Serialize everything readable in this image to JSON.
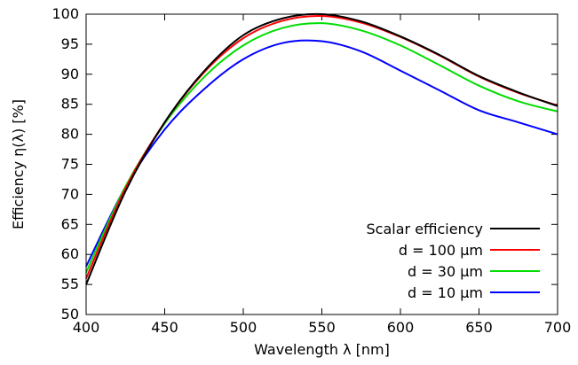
{
  "chart_data": {
    "type": "line",
    "xlabel": "Wavelength   λ [nm]",
    "ylabel": "Efficiency   η(λ) [%]",
    "xlim": [
      400,
      700
    ],
    "ylim": [
      50,
      100
    ],
    "xticks": [
      400,
      450,
      500,
      550,
      600,
      650,
      700
    ],
    "yticks": [
      50,
      55,
      60,
      65,
      70,
      75,
      80,
      85,
      90,
      95,
      100
    ],
    "grid": false,
    "legend": "bottom-right",
    "x": [
      400,
      425,
      450,
      475,
      500,
      525,
      550,
      575,
      600,
      625,
      650,
      675,
      700
    ],
    "series": [
      {
        "name": "Scalar  efficiency",
        "color": "#000000",
        "values": [
          55.0,
          70.5,
          82.0,
          90.5,
          96.5,
          99.3,
          100.0,
          98.8,
          96.3,
          93.2,
          89.7,
          87.0,
          84.7
        ]
      },
      {
        "name": "d = 100 µm",
        "color": "#ff0000",
        "values": [
          56.0,
          71.0,
          82.0,
          90.3,
          96.0,
          98.9,
          99.7,
          98.6,
          96.2,
          93.1,
          89.6,
          86.9,
          84.8
        ]
      },
      {
        "name": "d =   30 µm",
        "color": "#00dd00",
        "values": [
          57.0,
          71.3,
          81.8,
          89.5,
          94.8,
          97.7,
          98.5,
          97.3,
          94.8,
          91.5,
          88.1,
          85.5,
          83.8
        ]
      },
      {
        "name": "d =   10 µm",
        "color": "#0000ff",
        "values": [
          58.0,
          71.2,
          80.8,
          87.5,
          92.5,
          95.2,
          95.5,
          93.8,
          90.6,
          87.3,
          84.0,
          82.0,
          80.0
        ]
      }
    ]
  }
}
